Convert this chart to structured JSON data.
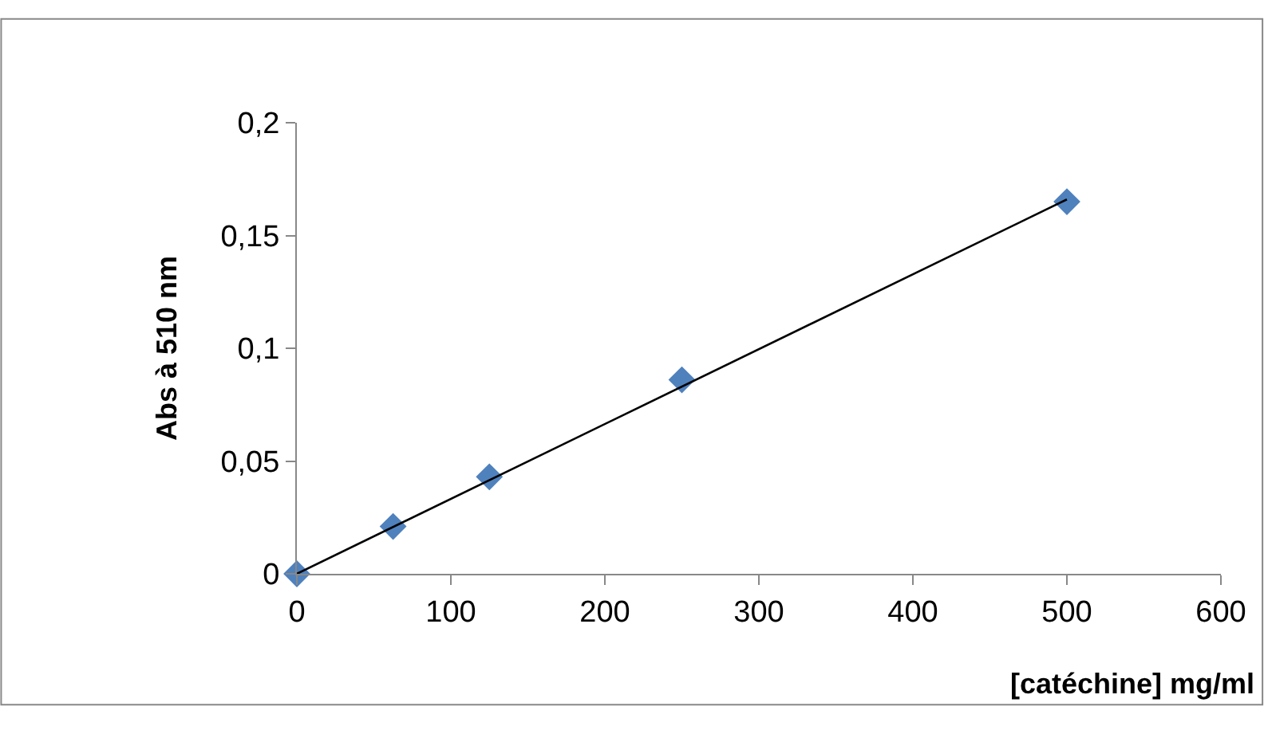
{
  "chart_data": {
    "type": "scatter",
    "xlabel": "[catéchine] mg/ml",
    "ylabel": "Abs à 510 nm",
    "x": [
      0,
      62.5,
      125,
      250,
      500
    ],
    "series": [
      {
        "color": "#4f81bd",
        "marker": "diamond",
        "values": [
          0,
          0.021,
          0.043,
          0.086,
          0.165
        ]
      },
      {
        "type": "line",
        "color": "#000000",
        "x": [
          0,
          500
        ],
        "values": [
          0,
          0.166
        ],
        "line_style": "solid",
        "marker": "none"
      }
    ],
    "xlim": [
      0,
      600
    ],
    "xticks": [
      0,
      100,
      200,
      300,
      400,
      500,
      600
    ],
    "ylim": [
      0,
      0.2
    ],
    "yticks": [
      {
        "value": 0,
        "label": "0"
      },
      {
        "value": 0.05,
        "label": "0,05"
      },
      {
        "value": 0.1,
        "label": "0,1"
      },
      {
        "value": 0.15,
        "label": "0,15"
      },
      {
        "value": 0.2,
        "label": "0,2"
      }
    ]
  }
}
